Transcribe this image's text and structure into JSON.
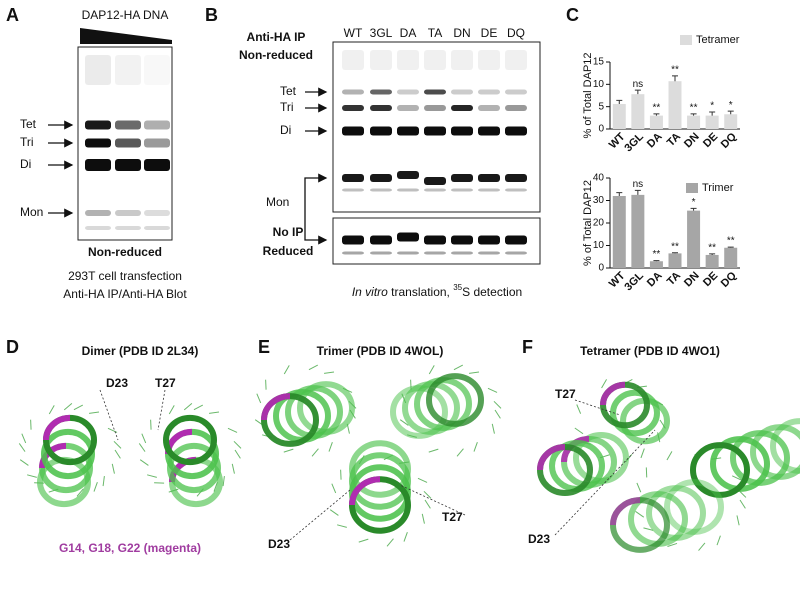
{
  "panel_a": {
    "letter": "A",
    "header": "DAP12-HA DNA",
    "bands": [
      "Tet",
      "Tri",
      "Di",
      "Mon"
    ],
    "caption": "Non-reduced",
    "footer": [
      "293T cell transfection",
      "Anti-HA IP/Anti-HA Blot"
    ]
  },
  "panel_b": {
    "letter": "B",
    "top_label": [
      "Anti-HA IP",
      "Non-reduced"
    ],
    "lanes": [
      "WT",
      "3GL",
      "DA",
      "TA",
      "DN",
      "DE",
      "DQ"
    ],
    "bands": [
      "Tet",
      "Tri",
      "Di"
    ],
    "mon": "Mon",
    "bottom_label": [
      "No IP",
      "Reduced"
    ],
    "footer": {
      "italic": "In vitro",
      "text": " translation, ",
      "sup": "35",
      "rest": "S detection"
    }
  },
  "panel_c": {
    "letter": "C",
    "charts": [
      {
        "type": "bar",
        "y_label": "% of Total DAP12",
        "categories": [
          "WT",
          "3GL",
          "DA",
          "TA",
          "DN",
          "DE",
          "DQ"
        ],
        "series": [
          {
            "name": "Tetramer",
            "color": "#dcdcdc",
            "values": [
              5.6,
              7.8,
              3.0,
              10.7,
              3.0,
              3.0,
              3.3
            ],
            "errors": [
              0.8,
              0.9,
              0.4,
              1.2,
              0.4,
              0.8,
              0.7
            ],
            "significance": [
              null,
              "ns",
              "**",
              "**",
              "**",
              "*",
              "*"
            ]
          }
        ],
        "ylim": [
          0,
          15
        ],
        "yticks": [
          0,
          5,
          10,
          15
        ]
      },
      {
        "type": "bar",
        "y_label": "% of Total DAP12",
        "categories": [
          "WT",
          "3GL",
          "DA",
          "TA",
          "DN",
          "DE",
          "DQ"
        ],
        "series": [
          {
            "name": "Trimer",
            "color": "#a6a6a6",
            "values": [
              32,
              32.5,
              3,
              6.5,
              25.5,
              5.8,
              9
            ],
            "errors": [
              1.5,
              2,
              0.3,
              0.3,
              1,
              0.5,
              0.3
            ],
            "significance": [
              null,
              "ns",
              "**",
              "**",
              "*",
              "**",
              "**"
            ]
          }
        ],
        "ylim": [
          0,
          40
        ],
        "yticks": [
          0,
          10,
          20,
          30,
          40
        ]
      }
    ]
  },
  "panel_d": {
    "letter": "D",
    "title": "Dimer (PDB ID 2L34)",
    "labels": [
      "D23",
      "T27"
    ],
    "caption": "G14, G18, G22 (magenta)"
  },
  "panel_e": {
    "letter": "E",
    "title": "Trimer (PDB ID 4WOL)",
    "labels": [
      "D23",
      "T27"
    ]
  },
  "panel_f": {
    "letter": "F",
    "title": "Tetramer (PDB ID 4WO1)",
    "labels": [
      "T27",
      "D23"
    ]
  }
}
